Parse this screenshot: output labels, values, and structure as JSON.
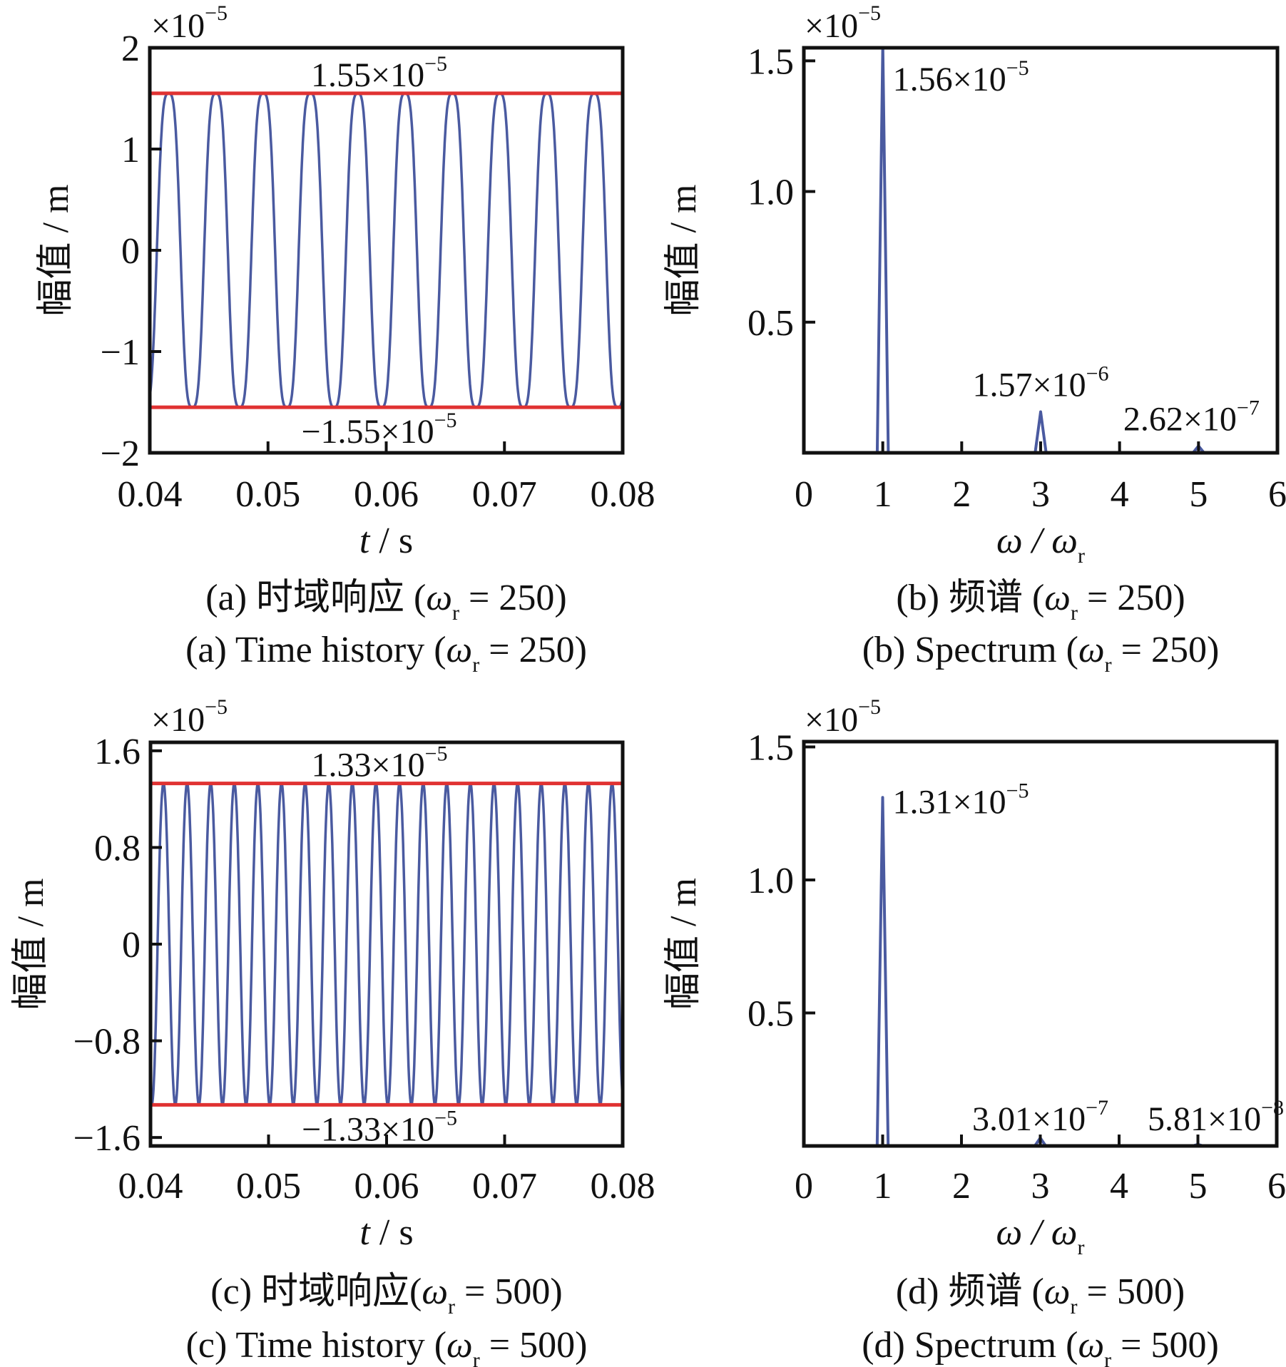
{
  "colors": {
    "signal": "#4a5aa0",
    "bound": "#e03232",
    "axis": "#111111"
  },
  "chart_data": [
    {
      "id": "a",
      "type": "line",
      "multiplier": "×10",
      "multiplier_exp": "−5",
      "xlabel_italic": "t",
      "xlabel_rest": " / s",
      "ylabel": "幅值 / m",
      "xlim": [
        0.04,
        0.08
      ],
      "ylim": [
        -2,
        2
      ],
      "xticks": [
        0.04,
        0.05,
        0.06,
        0.07,
        0.08
      ],
      "xtick_labels": [
        "0.04",
        "0.05",
        "0.06",
        "0.07",
        "0.08"
      ],
      "yticks": [
        -2,
        -1,
        0,
        1,
        2
      ],
      "ytick_labels": [
        "−2",
        "−1",
        "0",
        "1",
        "2"
      ],
      "signal": {
        "amplitude": 1.55,
        "frequency_hz": 250,
        "first_peak_t": 0.0416,
        "harmonic3_ratio": 0.1,
        "units": "×1e-5 m"
      },
      "bounds": [
        1.55,
        -1.55
      ],
      "annotations": [
        {
          "mant": "1.55×10",
          "exp": "−5",
          "value": 1.55
        },
        {
          "mant": "−1.55×10",
          "exp": "−5",
          "value": -1.55
        }
      ],
      "caption_cn": {
        "prefix": "(a)  时域响应 (",
        "omega": "ω",
        "sub": "r",
        "suffix": " = 250)"
      },
      "caption_en": {
        "prefix": "(a)  Time history (",
        "omega": "ω",
        "sub": "r",
        "suffix": " = 250)"
      }
    },
    {
      "id": "b",
      "type": "line",
      "multiplier": "×10",
      "multiplier_exp": "−5",
      "xlabel_omega": "ω / ω",
      "xlabel_sub": "r",
      "ylabel": "幅值 / m",
      "xlim": [
        0,
        6
      ],
      "ylim": [
        0,
        1.55
      ],
      "xticks": [
        0,
        1,
        2,
        3,
        4,
        5,
        6
      ],
      "xtick_labels": [
        "0",
        "1",
        "2",
        "3",
        "4",
        "5",
        "6"
      ],
      "yticks": [
        0.5,
        1.0,
        1.5
      ],
      "ytick_labels": [
        "0.5",
        "1.0",
        "1.5"
      ],
      "peaks": [
        {
          "x": 1,
          "y": 1.56,
          "mant": "1.56×10",
          "exp": "−5"
        },
        {
          "x": 3,
          "y": 0.157,
          "mant": "1.57×10",
          "exp": "−6"
        },
        {
          "x": 5,
          "y": 0.0262,
          "mant": "2.62×10",
          "exp": "−7"
        }
      ],
      "caption_cn": {
        "prefix": "(b)  频谱 (",
        "omega": "ω",
        "sub": "r",
        "suffix": " = 250)"
      },
      "caption_en": {
        "prefix": "(b)  Spectrum (",
        "omega": "ω",
        "sub": "r",
        "suffix": " = 250)"
      }
    },
    {
      "id": "c",
      "type": "line",
      "multiplier": "×10",
      "multiplier_exp": "−5",
      "xlabel_italic": "t",
      "xlabel_rest": " / s",
      "ylabel": "幅值 / m",
      "xlim": [
        0.04,
        0.08
      ],
      "ylim": [
        -1.67,
        1.67
      ],
      "xticks": [
        0.04,
        0.05,
        0.06,
        0.07,
        0.08
      ],
      "xtick_labels": [
        "0.04",
        "0.05",
        "0.06",
        "0.07",
        "0.08"
      ],
      "yticks": [
        -1.6,
        -0.8,
        0,
        0.8,
        1.6
      ],
      "ytick_labels": [
        "−1.6",
        "−0.8",
        "0",
        "0.8",
        "1.6"
      ],
      "signal": {
        "amplitude": 1.33,
        "frequency_hz": 500,
        "first_peak_t": 0.0411,
        "harmonic3_ratio": 0.02,
        "units": "×1e-5 m"
      },
      "bounds": [
        1.33,
        -1.33
      ],
      "annotations": [
        {
          "mant": "1.33×10",
          "exp": "−5",
          "value": 1.33
        },
        {
          "mant": "−1.33×10",
          "exp": "−5",
          "value": -1.33
        }
      ],
      "caption_cn": {
        "prefix": "(c)  时域响应(",
        "omega": "ω",
        "sub": "r",
        "suffix": " = 500)"
      },
      "caption_en": {
        "prefix": "(c)  Time history (",
        "omega": "ω",
        "sub": "r",
        "suffix": " = 500)"
      }
    },
    {
      "id": "d",
      "type": "line",
      "multiplier": "×10",
      "multiplier_exp": "−5",
      "xlabel_omega": "ω / ω",
      "xlabel_sub": "r",
      "ylabel": "幅值 / m",
      "xlim": [
        0,
        6
      ],
      "ylim": [
        0,
        1.52
      ],
      "xticks": [
        0,
        1,
        2,
        3,
        4,
        5,
        6
      ],
      "xtick_labels": [
        "0",
        "1",
        "2",
        "3",
        "4",
        "5",
        "6"
      ],
      "yticks": [
        0.5,
        1.0,
        1.5
      ],
      "ytick_labels": [
        "0.5",
        "1.0",
        "1.5"
      ],
      "peaks": [
        {
          "x": 1,
          "y": 1.31,
          "mant": "1.31×10",
          "exp": "−5"
        },
        {
          "x": 3,
          "y": 0.0301,
          "mant": "3.01×10",
          "exp": "−7"
        },
        {
          "x": 5,
          "y": 0.0058,
          "mant": "5.81×10",
          "exp": "−8"
        }
      ],
      "caption_cn": {
        "prefix": "(d)  频谱 (",
        "omega": "ω",
        "sub": "r",
        "suffix": " = 500)"
      },
      "caption_en": {
        "prefix": "(d)  Spectrum (",
        "omega": "ω",
        "sub": "r",
        "suffix": " = 500)"
      }
    }
  ]
}
